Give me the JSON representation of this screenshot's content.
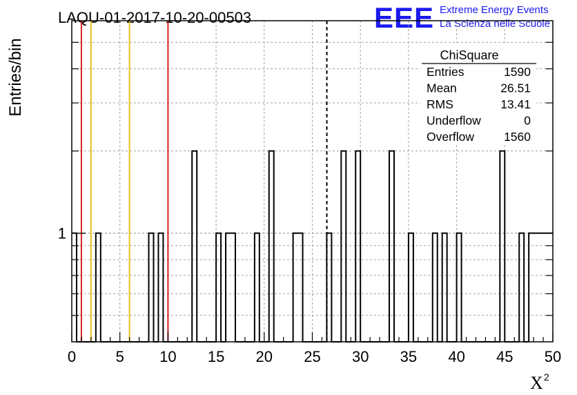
{
  "chart_data": {
    "type": "histogram",
    "title": "LAQU-01-2017-10-20-00503",
    "xlabel": "X",
    "xlabel_superscript": "2",
    "ylabel": "Entries/bin",
    "xlim": [
      0,
      50
    ],
    "y_scale": "log",
    "ylim": [
      0.4,
      6
    ],
    "x_ticks": [
      0,
      5,
      10,
      15,
      20,
      25,
      30,
      35,
      40,
      45,
      50
    ],
    "x_tick_labels": [
      "0",
      "5",
      "10",
      "15",
      "20",
      "25",
      "30",
      "35",
      "40",
      "45",
      "50"
    ],
    "y_tick_labels": [
      {
        "value": 1,
        "label": "1"
      }
    ],
    "grid": true,
    "bin_width": 0.5,
    "bins": [
      {
        "x": 0.0,
        "count": 1
      },
      {
        "x": 2.5,
        "count": 1
      },
      {
        "x": 8.0,
        "count": 1
      },
      {
        "x": 9.0,
        "count": 1
      },
      {
        "x": 12.5,
        "count": 2
      },
      {
        "x": 15.0,
        "count": 1
      },
      {
        "x": 16.0,
        "count": 1
      },
      {
        "x": 16.5,
        "count": 1
      },
      {
        "x": 19.0,
        "count": 1
      },
      {
        "x": 20.5,
        "count": 2
      },
      {
        "x": 23.0,
        "count": 1
      },
      {
        "x": 23.5,
        "count": 1
      },
      {
        "x": 26.5,
        "count": 1
      },
      {
        "x": 28.0,
        "count": 2
      },
      {
        "x": 29.5,
        "count": 2
      },
      {
        "x": 33.0,
        "count": 2
      },
      {
        "x": 35.0,
        "count": 1
      },
      {
        "x": 37.5,
        "count": 1
      },
      {
        "x": 38.5,
        "count": 1
      },
      {
        "x": 40.0,
        "count": 1
      },
      {
        "x": 44.5,
        "count": 2
      },
      {
        "x": 46.5,
        "count": 1
      },
      {
        "x": 47.5,
        "count": 1
      },
      {
        "x": 48.0,
        "count": 1
      },
      {
        "x": 48.5,
        "count": 1
      },
      {
        "x": 49.0,
        "count": 1
      },
      {
        "x": 49.5,
        "count": 1
      }
    ],
    "vertical_lines": [
      {
        "x": 1,
        "color": "#d42020",
        "style": "solid"
      },
      {
        "x": 2,
        "color": "#f0c020",
        "style": "solid"
      },
      {
        "x": 6,
        "color": "#f0c020",
        "style": "solid"
      },
      {
        "x": 10,
        "color": "#d42020",
        "style": "solid"
      },
      {
        "x": 26.51,
        "color": "#000000",
        "style": "dashed"
      }
    ],
    "stats_box": {
      "title": "ChiSquare",
      "rows": [
        {
          "label": "Entries",
          "value": "1590"
        },
        {
          "label": "Mean",
          "value": "26.51"
        },
        {
          "label": "RMS",
          "value": "13.41"
        },
        {
          "label": "Underflow",
          "value": "0"
        },
        {
          "label": "Overflow",
          "value": "1560"
        }
      ]
    }
  },
  "logo": {
    "mark": "EEE",
    "line1": "Extreme Energy Events",
    "line2": "La Scienza nelle Scuole",
    "color": "#1a1aee"
  },
  "colors": {
    "axis": "#000000",
    "grid": "#a0a0a0",
    "histogram": "#000000"
  }
}
